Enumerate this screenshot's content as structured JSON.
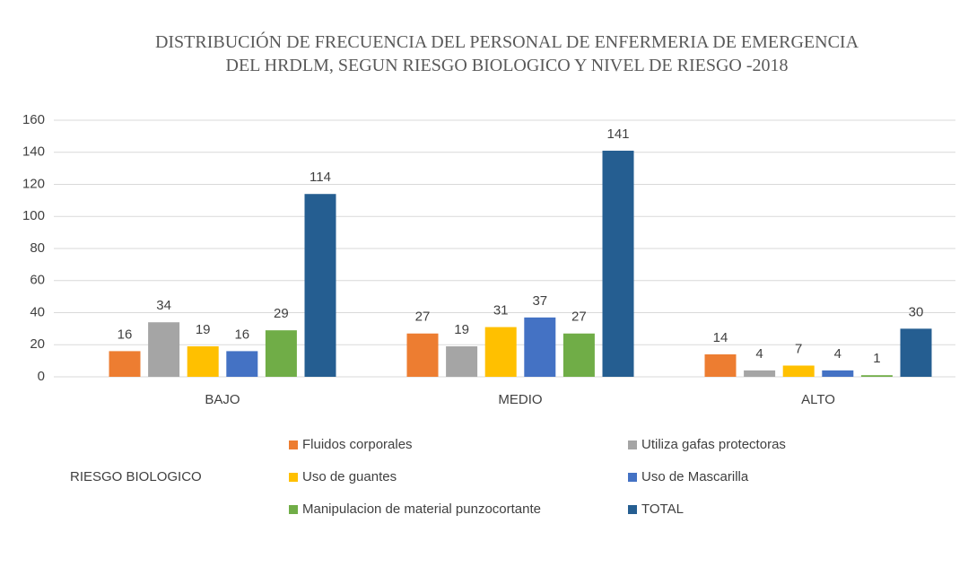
{
  "chart_data": {
    "type": "bar",
    "title": "DISTRIBUCIÓN DE FRECUENCIA DEL PERSONAL DE ENFERMERIA DE EMERGENCIA DEL HRDLM, SEGUN RIESGO BIOLOGICO Y NIVEL DE RIESGO -2018",
    "x_label": "RIESGO BIOLOGICO",
    "categories": [
      "BAJO",
      "MEDIO",
      "ALTO"
    ],
    "series": [
      {
        "name": "Fluidos corporales",
        "color": "#ed7d31",
        "values": [
          16,
          27,
          14
        ]
      },
      {
        "name": "Utiliza gafas protectoras",
        "color": "#a5a5a5",
        "values": [
          34,
          19,
          4
        ]
      },
      {
        "name": "Uso de guantes",
        "color": "#ffc000",
        "values": [
          19,
          31,
          7
        ]
      },
      {
        "name": "Uso de Mascarilla",
        "color": "#4472c4",
        "values": [
          16,
          37,
          4
        ]
      },
      {
        "name": "Manipulacion de material punzocortante",
        "color": "#70ad47",
        "values": [
          29,
          27,
          1
        ]
      },
      {
        "name": "TOTAL",
        "color": "#255e91",
        "values": [
          114,
          141,
          30
        ]
      }
    ],
    "ylim": [
      0,
      160
    ],
    "yticks": [
      0,
      20,
      40,
      60,
      80,
      100,
      120,
      140,
      160
    ],
    "grid": true,
    "legend": "bottom"
  }
}
